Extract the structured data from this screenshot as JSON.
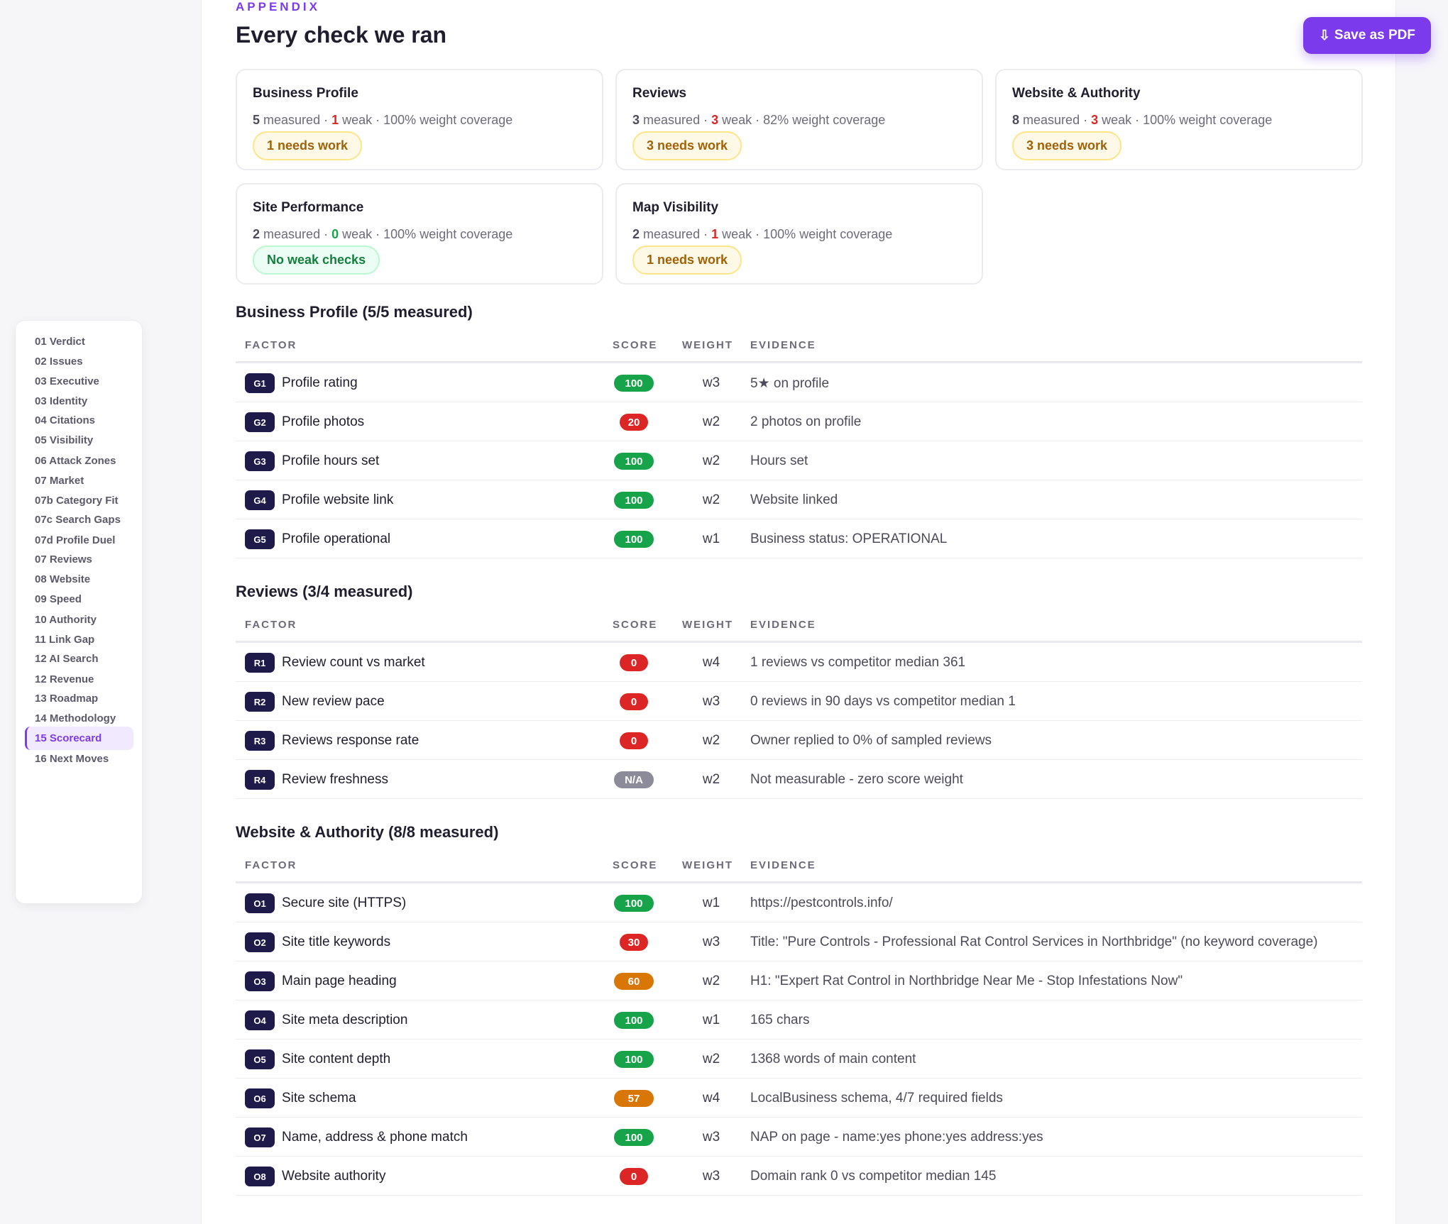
{
  "header": {
    "eyebrow": "APPENDIX",
    "title": "Every check we ran",
    "save_icon": "⇩",
    "save_label": "Save as PDF"
  },
  "sidebar": {
    "items": [
      {
        "label": "01 Verdict"
      },
      {
        "label": "02 Issues"
      },
      {
        "label": "03 Executive"
      },
      {
        "label": "03 Identity"
      },
      {
        "label": "04 Citations"
      },
      {
        "label": "05 Visibility"
      },
      {
        "label": "06 Attack Zones"
      },
      {
        "label": "07 Market"
      },
      {
        "label": "07b Category Fit"
      },
      {
        "label": "07c Search Gaps"
      },
      {
        "label": "07d Profile Duel"
      },
      {
        "label": "07 Reviews"
      },
      {
        "label": "08 Website"
      },
      {
        "label": "09 Speed"
      },
      {
        "label": "10 Authority"
      },
      {
        "label": "11 Link Gap"
      },
      {
        "label": "12 AI Search"
      },
      {
        "label": "12 Revenue"
      },
      {
        "label": "13 Roadmap"
      },
      {
        "label": "14 Methodology"
      },
      {
        "label": "15 Scorecard",
        "active": true
      },
      {
        "label": "16 Next Moves"
      }
    ]
  },
  "summary_cards": [
    {
      "title": "Business Profile",
      "measured": "5",
      "weak": "1",
      "coverage": "100%",
      "measured_label": "measured",
      "weak_label": "weak",
      "coverage_label": "weight coverage",
      "pill": "1 needs work",
      "pill_type": "warn"
    },
    {
      "title": "Reviews",
      "measured": "3",
      "weak": "3",
      "coverage": "82%",
      "measured_label": "measured",
      "weak_label": "weak",
      "coverage_label": "weight coverage",
      "pill": "3 needs work",
      "pill_type": "warn"
    },
    {
      "title": "Website & Authority",
      "measured": "8",
      "weak": "3",
      "coverage": "100%",
      "measured_label": "measured",
      "weak_label": "weak",
      "coverage_label": "weight coverage",
      "pill": "3 needs work",
      "pill_type": "warn"
    },
    {
      "title": "Site Performance",
      "measured": "2",
      "weak": "0",
      "coverage": "100%",
      "measured_label": "measured",
      "weak_label": "weak",
      "coverage_label": "weight coverage",
      "pill": "No weak checks",
      "pill_type": "good"
    },
    {
      "title": "Map Visibility",
      "measured": "2",
      "weak": "1",
      "coverage": "100%",
      "measured_label": "measured",
      "weak_label": "weak",
      "coverage_label": "weight coverage",
      "pill": "1 needs work",
      "pill_type": "warn"
    }
  ],
  "columns": {
    "factor": "FACTOR",
    "score": "SCORE",
    "weight": "WEIGHT",
    "evidence": "EVIDENCE"
  },
  "sections": [
    {
      "title": "Business Profile (5/5 measured)",
      "rows": [
        {
          "code": "G1",
          "factor": "Profile rating",
          "score": "100",
          "score_color": "green",
          "weight": "w3",
          "evidence": "5★ on profile"
        },
        {
          "code": "G2",
          "factor": "Profile photos",
          "score": "20",
          "score_color": "red",
          "weight": "w2",
          "evidence": "2 photos on profile"
        },
        {
          "code": "G3",
          "factor": "Profile hours set",
          "score": "100",
          "score_color": "green",
          "weight": "w2",
          "evidence": "Hours set"
        },
        {
          "code": "G4",
          "factor": "Profile website link",
          "score": "100",
          "score_color": "green",
          "weight": "w2",
          "evidence": "Website linked"
        },
        {
          "code": "G5",
          "factor": "Profile operational",
          "score": "100",
          "score_color": "green",
          "weight": "w1",
          "evidence": "Business status: OPERATIONAL"
        }
      ]
    },
    {
      "title": "Reviews (3/4 measured)",
      "rows": [
        {
          "code": "R1",
          "factor": "Review count vs market",
          "score": "0",
          "score_color": "red",
          "weight": "w4",
          "evidence": "1 reviews vs competitor median 361"
        },
        {
          "code": "R2",
          "factor": "New review pace",
          "score": "0",
          "score_color": "red",
          "weight": "w3",
          "evidence": "0 reviews in 90 days vs competitor median 1"
        },
        {
          "code": "R3",
          "factor": "Reviews response rate",
          "score": "0",
          "score_color": "red",
          "weight": "w2",
          "evidence": "Owner replied to 0% of sampled reviews"
        },
        {
          "code": "R4",
          "factor": "Review freshness",
          "score": "N/A",
          "score_color": "gray",
          "weight": "w2",
          "evidence": "Not measurable - zero score weight"
        }
      ]
    },
    {
      "title": "Website & Authority (8/8 measured)",
      "rows": [
        {
          "code": "O1",
          "factor": "Secure site (HTTPS)",
          "score": "100",
          "score_color": "green",
          "weight": "w1",
          "evidence": "https://pestcontrols.info/"
        },
        {
          "code": "O2",
          "factor": "Site title keywords",
          "score": "30",
          "score_color": "red",
          "weight": "w3",
          "evidence": "Title: \"Pure Controls - Professional Rat Control Services in Northbridge\" (no keyword coverage)"
        },
        {
          "code": "O3",
          "factor": "Main page heading",
          "score": "60",
          "score_color": "orange",
          "weight": "w2",
          "evidence": "H1: \"Expert Rat Control in Northbridge Near Me - Stop Infestations Now\""
        },
        {
          "code": "O4",
          "factor": "Site meta description",
          "score": "100",
          "score_color": "green",
          "weight": "w1",
          "evidence": "165 chars"
        },
        {
          "code": "O5",
          "factor": "Site content depth",
          "score": "100",
          "score_color": "green",
          "weight": "w2",
          "evidence": "1368 words of main content"
        },
        {
          "code": "O6",
          "factor": "Site schema",
          "score": "57",
          "score_color": "orange",
          "weight": "w4",
          "evidence": "LocalBusiness schema, 4/7 required fields"
        },
        {
          "code": "O7",
          "factor": "Name, address & phone match",
          "score": "100",
          "score_color": "green",
          "weight": "w3",
          "evidence": "NAP on page - name:yes phone:yes address:yes"
        },
        {
          "code": "O8",
          "factor": "Website authority",
          "score": "0",
          "score_color": "red",
          "weight": "w3",
          "evidence": "Domain rank 0 vs competitor median 145"
        }
      ]
    }
  ]
}
